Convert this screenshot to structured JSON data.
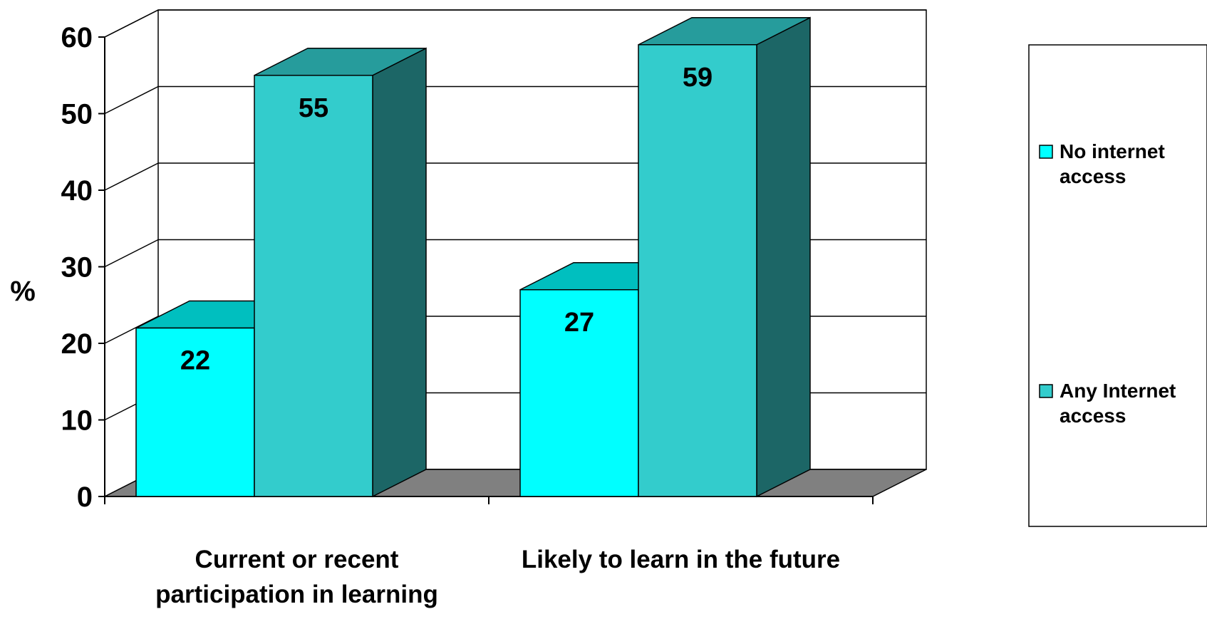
{
  "chart_data": {
    "type": "bar",
    "title": "",
    "xlabel": "",
    "ylabel": "%",
    "ylim": [
      0,
      60
    ],
    "yticks": [
      0,
      10,
      20,
      30,
      40,
      50,
      60
    ],
    "grid": true,
    "three_d": true,
    "legend_position": "right",
    "categories": [
      [
        "Current or recent",
        "participation in learning"
      ],
      [
        "Likely to learn in the future"
      ]
    ],
    "series": [
      {
        "name": [
          "No internet",
          "access"
        ],
        "values": [
          22,
          27
        ],
        "color": "#00FFFF"
      },
      {
        "name": [
          "Any Internet",
          "access"
        ],
        "values": [
          55,
          59
        ],
        "color": "#33CCCC"
      }
    ],
    "data_labels": true,
    "colors": {
      "floor": "#808080",
      "series_top": [
        "#00BFBF",
        "#269C9C"
      ],
      "series_side": [
        "#008B8B",
        "#1C6666"
      ]
    }
  }
}
